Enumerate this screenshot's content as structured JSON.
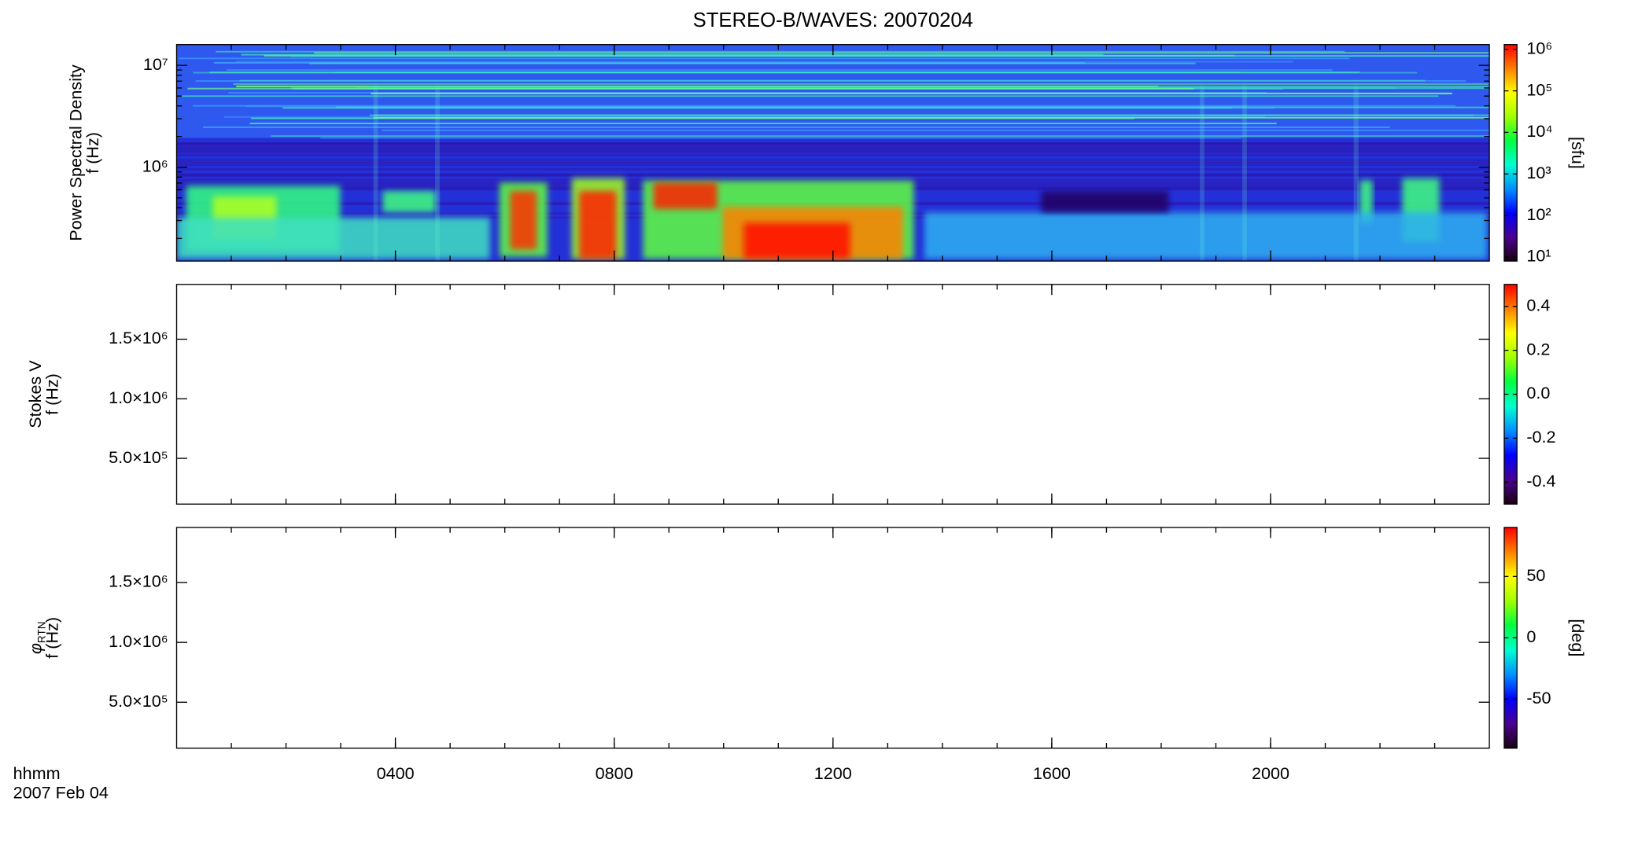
{
  "chart_data": [
    {
      "type": "spectrogram",
      "title": "STEREO-B/WAVES: 20070204",
      "ylabel": [
        "Power Spectral Density",
        "f (Hz)"
      ],
      "ylog": true,
      "ylim": [
        120000,
        16000000
      ],
      "yticks": [
        {
          "value": 1000000,
          "label": "10⁶"
        },
        {
          "value": 10000000,
          "label": "10⁷"
        }
      ],
      "colorbar": {
        "log": true,
        "lim": [
          8,
          1300000
        ],
        "label": "[sfu]",
        "ticks": [
          {
            "value": 10,
            "label": "10¹"
          },
          {
            "value": 100,
            "label": "10²"
          },
          {
            "value": 1000,
            "label": "10³"
          },
          {
            "value": 10000,
            "label": "10⁴"
          },
          {
            "value": 100000,
            "label": "10⁵"
          },
          {
            "value": 1000000,
            "label": "10⁶"
          }
        ]
      },
      "colormap": [
        "#1a0010",
        "#4a0090",
        "#0000ff",
        "#0090ff",
        "#00ffd0",
        "#00ff40",
        "#a0ff00",
        "#ffff00",
        "#ff8000",
        "#ff0000"
      ]
    },
    {
      "type": "spectrogram",
      "ylabel": [
        "Stokes V",
        "f (Hz)"
      ],
      "ylog": false,
      "ylim": [
        116000,
        1960000
      ],
      "yticks": [
        {
          "value": 500000,
          "label": "5.0×10⁵"
        },
        {
          "value": 1000000,
          "label": "1.0×10⁶"
        },
        {
          "value": 1500000,
          "label": "1.5×10⁶"
        }
      ],
      "colorbar": {
        "log": false,
        "lim": [
          -0.5,
          0.5
        ],
        "ticks": [
          -0.4,
          -0.2,
          {
            "value": 0,
            "label": "0.0"
          },
          0.2,
          0.4
        ]
      },
      "colormap": [
        "#1a0010",
        "#4a0090",
        "#0000ff",
        "#0090ff",
        "#00ffd0",
        "#00ff40",
        "#a0ff00",
        "#ffff00",
        "#ff8000",
        "#ff0000"
      ]
    },
    {
      "type": "spectrogram",
      "ylabel_symbol": "φ",
      "ylabel_subscript": "RTN",
      "ylabel": [
        "f (Hz)"
      ],
      "ylog": false,
      "ylim": [
        116000,
        1960000
      ],
      "yticks": [
        {
          "value": 500000,
          "label": "5.0×10⁵"
        },
        {
          "value": 1000000,
          "label": "1.0×10⁶"
        },
        {
          "value": 1500000,
          "label": "1.5×10⁶"
        }
      ],
      "colorbar": {
        "log": false,
        "lim": [
          -90,
          90
        ],
        "label": "[deg]",
        "ticks": [
          -50,
          0,
          50
        ]
      },
      "colormap": [
        "#1a0010",
        "#4a0090",
        "#0000ff",
        "#0090ff",
        "#00ffd0",
        "#00ff40",
        "#a0ff00",
        "#ffff00",
        "#ff8000",
        "#ff0000"
      ],
      "xlabel": [
        "hhmm",
        "2007 Feb 04"
      ],
      "xlim": [
        0,
        24
      ],
      "xticks": [
        {
          "value": 4,
          "label": "0400"
        },
        {
          "value": 8,
          "label": "0800"
        },
        {
          "value": 12,
          "label": "1200"
        },
        {
          "value": 16,
          "label": "1600"
        },
        {
          "value": 20,
          "label": "2000"
        }
      ]
    }
  ]
}
